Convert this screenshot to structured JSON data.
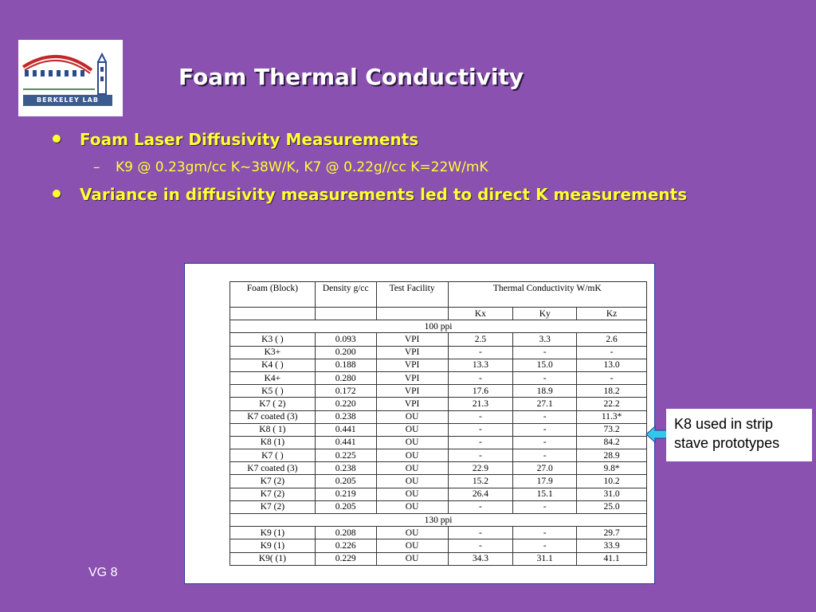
{
  "logo": {
    "text": "BERKELEY LAB"
  },
  "slide": {
    "title": "Foam Thermal Conductivity",
    "bullets": [
      "Foam Laser Diffusivity Measurements",
      "Variance in diffusivity measurements led to direct K measurements"
    ],
    "sub_bullets": [
      {
        "dash": "–",
        "text": "K9 @ 0.23gm/cc K~38W/K, K7 @ 0.22g//cc K=22W/mK"
      }
    ],
    "footer": "VG 8"
  },
  "table": {
    "headers": {
      "foam": "Foam (Block)",
      "density": "Density g/cc",
      "facility": "Test Facility",
      "conductivity": "Thermal Conductivity W/mK",
      "kx": "Kx",
      "ky": "Ky",
      "kz": "Kz"
    },
    "sections": [
      {
        "label": "100 ppi",
        "rows": [
          [
            "K3 ( )",
            "0.093",
            "VPI",
            "2.5",
            "3.3",
            "2.6"
          ],
          [
            "K3+",
            "0.200",
            "VPI",
            "-",
            "-",
            "-"
          ],
          [
            "K4 ( )",
            "0.188",
            "VPI",
            "13.3",
            "15.0",
            "13.0"
          ],
          [
            "K4+",
            "0.280",
            "VPI",
            "-",
            "-",
            "-"
          ],
          [
            "K5 ( )",
            "0.172",
            "VPI",
            "17.6",
            "18.9",
            "18.2"
          ],
          [
            "K7 ( 2)",
            "0.220",
            "VPI",
            "21.3",
            "27.1",
            "22.2"
          ],
          [
            "K7 coated (3)",
            "0.238",
            "OU",
            "-",
            "-",
            "11.3*"
          ],
          [
            "K8 ( 1)",
            "0.441",
            "OU",
            "-",
            "-",
            "73.2"
          ],
          [
            "K8 (1)",
            "0.441",
            "OU",
            "-",
            "-",
            "84.2"
          ],
          [
            "K7  ( )",
            "0.225",
            "OU",
            "-",
            "-",
            "28.9"
          ],
          [
            "K7 coated (3)",
            "0.238",
            "OU",
            "22.9",
            "27.0",
            "9.8*"
          ],
          [
            "K7 (2)",
            "0.205",
            "OU",
            "15.2",
            "17.9",
            "10.2"
          ],
          [
            "K7 (2)",
            "0.219",
            "OU",
            "26.4",
            "15.1",
            "31.0"
          ],
          [
            "K7 (2)",
            "0.205",
            "OU",
            "-",
            "-",
            "25.0"
          ]
        ]
      },
      {
        "label": "130 ppi",
        "rows": [
          [
            "K9 (1)",
            "0.208",
            "OU",
            "-",
            "-",
            "29.7"
          ],
          [
            "K9 (1)",
            "0.226",
            "OU",
            "-",
            "-",
            "33.9"
          ],
          [
            "K9( (1)",
            "0.229",
            "OU",
            "34.3",
            "31.1",
            "41.1"
          ]
        ]
      }
    ]
  },
  "callout": {
    "text": "K8 used in strip stave prototypes"
  },
  "colors": {
    "background": "#8a51b0",
    "bullet_text": "#ffff33",
    "title_text": "#ffffff",
    "panel_border": "#2a3a9a",
    "arrow_fill": "#33c8e8"
  }
}
